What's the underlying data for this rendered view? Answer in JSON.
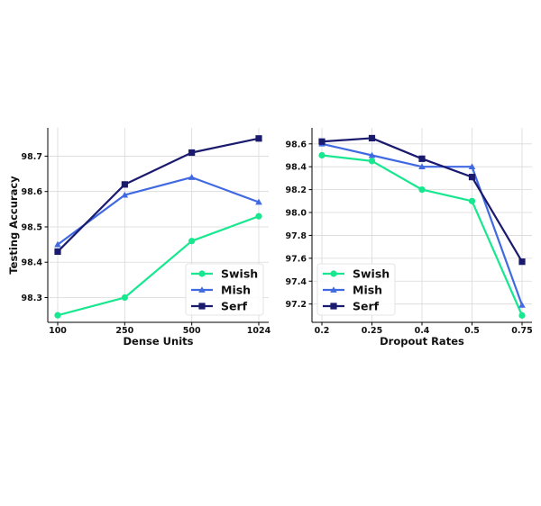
{
  "chart_data": [
    {
      "type": "line",
      "title": "",
      "xlabel": "Dense Units",
      "ylabel": "Testing Accuracy",
      "categories": [
        "100",
        "250",
        "500",
        "1024"
      ],
      "ylim": [
        98.23,
        98.78
      ],
      "yticks": [
        "98.3",
        "98.4",
        "98.5",
        "98.6",
        "98.7"
      ],
      "grid": true,
      "legend_position": "bottom-right",
      "series": [
        {
          "name": "Swish",
          "color": "#17e88f",
          "marker": "circle",
          "values": [
            98.25,
            98.3,
            98.46,
            98.53
          ]
        },
        {
          "name": "Mish",
          "color": "#4169e1",
          "marker": "triangle",
          "values": [
            98.45,
            98.59,
            98.64,
            98.57
          ]
        },
        {
          "name": "Serf",
          "color": "#1a1a6e",
          "marker": "square",
          "values": [
            98.43,
            98.62,
            98.71,
            98.75
          ]
        }
      ]
    },
    {
      "type": "line",
      "title": "",
      "xlabel": "Dropout Rates",
      "ylabel": "",
      "categories": [
        "0.2",
        "0.25",
        "0.4",
        "0.5",
        "0.75"
      ],
      "ylim": [
        97.04,
        98.74
      ],
      "yticks": [
        "97.2",
        "97.4",
        "97.6",
        "97.8",
        "98.0",
        "98.2",
        "98.4",
        "98.6"
      ],
      "grid": true,
      "legend_position": "bottom-left",
      "series": [
        {
          "name": "Swish",
          "color": "#17e88f",
          "marker": "circle",
          "values": [
            98.5,
            98.45,
            98.2,
            98.1,
            97.1
          ]
        },
        {
          "name": "Mish",
          "color": "#4169e1",
          "marker": "triangle",
          "values": [
            98.6,
            98.5,
            98.4,
            98.4,
            97.19
          ]
        },
        {
          "name": "Serf",
          "color": "#1a1a6e",
          "marker": "square",
          "values": [
            98.62,
            98.65,
            98.47,
            98.31,
            97.57
          ]
        }
      ]
    }
  ]
}
